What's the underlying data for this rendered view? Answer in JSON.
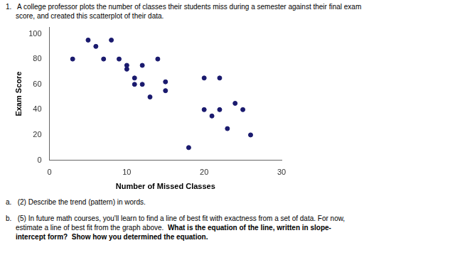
{
  "chart_data": {
    "type": "scatter",
    "title": [
      "1.   A college professor plots the number of classes their students miss during a semester against their final exam",
      "     score, and created this scatterplot of their data."
    ],
    "xlabel": "Number of Missed Classes",
    "ylabel": "Exam Score",
    "x": [
      3,
      5,
      6,
      7,
      8,
      9,
      10,
      10,
      11,
      11,
      12,
      12,
      13,
      14,
      15,
      15,
      18,
      20,
      20,
      21,
      22,
      22,
      23,
      24,
      25,
      26
    ],
    "values": [
      80,
      95,
      90,
      80,
      95,
      80,
      72,
      75,
      65,
      60,
      75,
      60,
      50,
      80,
      55,
      62,
      10,
      40,
      65,
      35,
      65,
      40,
      25,
      45,
      40,
      20
    ],
    "color": "#1a1a6e",
    "marker": "circle",
    "xlim": [
      0,
      30
    ],
    "ylim": [
      0,
      105
    ],
    "xticks": [
      0,
      10,
      20,
      30
    ],
    "yticks": [
      0,
      20,
      40,
      60,
      80,
      100
    ],
    "grid": false,
    "annotations": [
      [
        "a.   (2) Describe the trend (pattern) in words."
      ],
      [
        "b.   (5) In future math courses, you'll learn to find a line of best fit with exactness from a set of data. For now,"
      ],
      [
        "     estimate a line of best fit from the graph above.  ",
        "What is the equation of the line, written in slope-"
      ],
      [
        "     intercept form?  Show how you determined the equation."
      ]
    ]
  }
}
